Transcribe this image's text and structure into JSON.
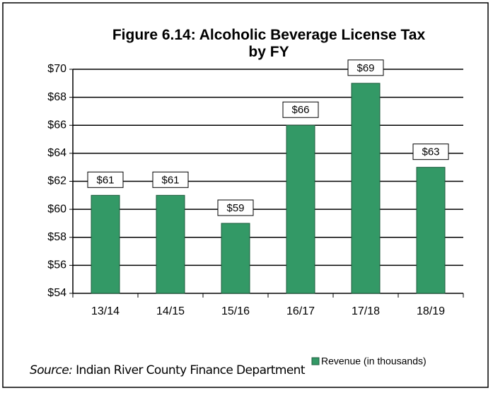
{
  "chart_data": {
    "type": "bar",
    "title": "Figure 6.14:  Alcoholic Beverage License Tax by FY",
    "categories": [
      "13/14",
      "14/15",
      "15/16",
      "16/17",
      "17/18",
      "18/19"
    ],
    "series": [
      {
        "name": "Revenue (in thousands)",
        "color": "#339966",
        "values": [
          61,
          61,
          59,
          66,
          69,
          63
        ],
        "value_labels": [
          "$61",
          "$61",
          "$59",
          "$66",
          "$69",
          "$63"
        ]
      }
    ],
    "ylim": [
      54,
      70
    ],
    "yticks": [
      {
        "value": 54,
        "label": "$54"
      },
      {
        "value": 56,
        "label": "$56"
      },
      {
        "value": 58,
        "label": "$58"
      },
      {
        "value": 60,
        "label": "$60"
      },
      {
        "value": 62,
        "label": "$62"
      },
      {
        "value": 64,
        "label": "$64"
      },
      {
        "value": 66,
        "label": "$66"
      },
      {
        "value": 68,
        "label": "$68"
      },
      {
        "value": 70,
        "label": "$70"
      }
    ],
    "grid": true,
    "legend": "bottom-right"
  },
  "source": {
    "label": "Source:",
    "text": "Indian River County Finance Department"
  }
}
